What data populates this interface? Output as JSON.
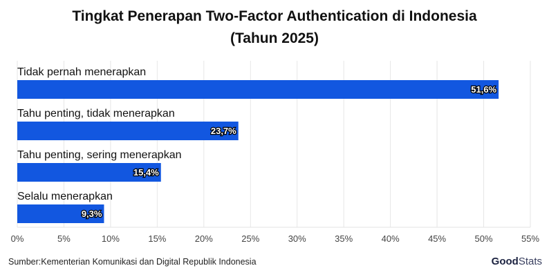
{
  "chart_data": {
    "type": "bar",
    "orientation": "horizontal",
    "title": "Tingkat Penerapan Two-Factor Authentication di Indonesia",
    "subtitle": "(Tahun 2025)",
    "categories": [
      "Tidak pernah menerapkan",
      "Tahu penting, tidak menerapkan",
      "Tahu penting, sering menerapkan",
      "Selalu menerapkan"
    ],
    "values": [
      51.6,
      23.7,
      15.4,
      9.3
    ],
    "value_labels": [
      "51,6%",
      "23,7%",
      "15,4%",
      "9,3%"
    ],
    "xlim": [
      0,
      55
    ],
    "xticks": [
      0,
      5,
      10,
      15,
      20,
      25,
      30,
      35,
      40,
      45,
      50,
      55
    ],
    "xtick_labels": [
      "0%",
      "5%",
      "10%",
      "15%",
      "20%",
      "25%",
      "30%",
      "35%",
      "40%",
      "45%",
      "50%",
      "55%"
    ],
    "grid": true,
    "bar_color": "#1257e0",
    "xlabel": "",
    "ylabel": ""
  },
  "source": "Sumber:Kementerian Komunikasi dan Digital Republik Indonesia",
  "logo": {
    "bold": "Good",
    "light": "Stats"
  }
}
